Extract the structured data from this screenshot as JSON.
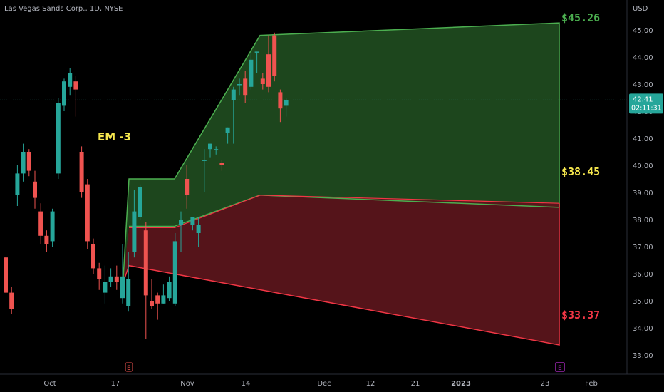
{
  "header": {
    "symbol_title": "Las Vegas Sands Corp., 1D, NYSE"
  },
  "axis": {
    "currency": "USD"
  },
  "price_badge": {
    "price": "42.41",
    "countdown": "02:11:31"
  },
  "colors": {
    "up": "#26a69a",
    "down": "#ef5350",
    "bull_zone_fill": "#1f4a1f",
    "bull_zone_line": "#4caf50",
    "bear_zone_fill": "#5a151b",
    "bear_zone_line": "#f23645",
    "label_green": "#4caf50",
    "label_yellow": "#f5e64d",
    "label_red": "#f23645"
  },
  "annotation": {
    "em_label": "EM -3"
  },
  "chart_data": {
    "type": "candlestick",
    "title": "Las Vegas Sands Corp., 1D, NYSE",
    "y_unit": "USD",
    "ylim": [
      32.5,
      46.0
    ],
    "y_ticks": [
      "33.00",
      "34.00",
      "35.00",
      "36.00",
      "37.00",
      "38.00",
      "39.00",
      "40.00",
      "41.00",
      "42.00",
      "43.00",
      "44.00",
      "45.00"
    ],
    "x_ticks": [
      "Oct",
      "17",
      "Nov",
      "14",
      "Dec",
      "12",
      "21",
      "2023",
      "23",
      "Feb"
    ],
    "current_price": 42.41,
    "candles": [
      [
        36.6,
        35.3,
        36.6,
        35.3
      ],
      [
        35.3,
        34.7,
        35.5,
        34.5
      ],
      [
        38.9,
        39.7,
        40.0,
        38.5
      ],
      [
        39.7,
        40.5,
        40.8,
        39.4
      ],
      [
        40.5,
        39.8,
        40.6,
        39.6
      ],
      [
        39.4,
        38.8,
        39.8,
        38.4
      ],
      [
        38.3,
        37.4,
        38.6,
        37.1
      ],
      [
        37.4,
        37.1,
        37.6,
        36.8
      ],
      [
        37.2,
        38.3,
        38.4,
        37.0
      ],
      [
        39.7,
        42.3,
        42.5,
        39.5
      ],
      [
        42.2,
        43.1,
        43.2,
        42.0
      ],
      [
        42.9,
        43.4,
        43.6,
        42.6
      ],
      [
        43.1,
        42.8,
        43.3,
        41.8
      ],
      [
        40.5,
        39.0,
        40.7,
        38.8
      ],
      [
        39.3,
        37.2,
        39.5,
        36.9
      ],
      [
        37.1,
        36.2,
        37.3,
        36.0
      ],
      [
        36.2,
        35.8,
        36.4,
        35.4
      ],
      [
        35.3,
        35.7,
        36.3,
        34.9
      ],
      [
        35.7,
        35.9,
        36.2,
        35.5
      ],
      [
        35.9,
        35.7,
        36.3,
        35.4
      ],
      [
        35.1,
        35.9,
        37.1,
        34.9
      ],
      [
        34.8,
        35.8,
        36.8,
        34.6
      ],
      [
        36.8,
        38.3,
        39.1,
        36.6
      ],
      [
        38.1,
        39.2,
        39.3,
        38.0
      ],
      [
        37.6,
        35.2,
        37.9,
        33.6
      ],
      [
        35.0,
        34.8,
        35.8,
        34.7
      ],
      [
        35.2,
        34.9,
        35.3,
        34.3
      ],
      [
        34.9,
        35.2,
        35.6,
        34.9
      ],
      [
        35.1,
        35.7,
        35.9,
        35.0
      ],
      [
        34.9,
        37.2,
        37.5,
        34.8
      ],
      [
        37.8,
        38.0,
        38.3,
        36.8
      ],
      [
        39.5,
        38.9,
        40.0,
        38.4
      ],
      [
        37.8,
        38.1,
        38.1,
        37.6
      ],
      [
        37.5,
        37.8,
        38.1,
        37.0
      ],
      [
        40.2,
        40.2,
        40.6,
        39.0
      ],
      [
        40.6,
        40.8,
        40.8,
        40.3
      ],
      [
        40.6,
        40.6,
        40.7,
        40.4
      ],
      [
        40.1,
        40.0,
        40.2,
        39.8
      ],
      [
        41.2,
        41.4,
        41.4,
        40.8
      ],
      [
        42.4,
        42.8,
        42.9,
        40.8
      ],
      [
        43.0,
        43.0,
        43.2,
        42.6
      ],
      [
        43.2,
        42.6,
        43.5,
        42.3
      ],
      [
        42.9,
        43.9,
        44.2,
        42.8
      ],
      [
        44.2,
        44.2,
        44.2,
        43.4
      ],
      [
        43.2,
        43.0,
        43.4,
        42.8
      ],
      [
        44.1,
        42.9,
        44.8,
        42.7
      ],
      [
        44.8,
        43.3,
        44.9,
        43.1
      ],
      [
        42.7,
        42.1,
        42.8,
        41.6
      ],
      [
        42.2,
        42.4,
        42.5,
        41.8
      ]
    ],
    "expected_move_zones": {
      "upper_bound_label": "$45.26",
      "mid_bound_label": "$38.45",
      "lower_bound_label": "$33.37",
      "upper_line": [
        [
          35.4,
          36.9
        ],
        [
          39.5,
          37.8
        ],
        [
          39.5,
          39.4
        ],
        [
          44.8,
          44.8
        ],
        [
          45.3,
          45.26
        ]
      ],
      "mid_line_upper": [
        [
          37.8,
          38.7
        ],
        [
          37.8,
          39.0
        ],
        [
          38.9,
          38.9
        ],
        [
          38.5,
          38.45
        ]
      ],
      "mid_line_lower": [
        [
          37.7,
          38.7
        ],
        [
          37.7,
          38.9
        ],
        [
          38.9,
          38.9
        ],
        [
          38.6,
          38.6
        ]
      ],
      "lower_line": [
        [
          36.3,
          35.6
        ],
        [
          36.1,
          36.3
        ],
        [
          33.4,
          33.37
        ]
      ]
    },
    "earnings_markers": [
      "E",
      "E"
    ]
  }
}
